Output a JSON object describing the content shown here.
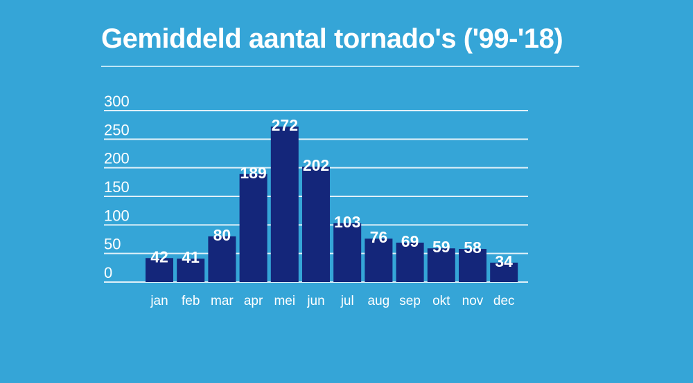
{
  "chart_data": {
    "type": "bar",
    "title": "Gemiddeld aantal tornado's ('99-'18)",
    "xlabel": "",
    "ylabel": "",
    "categories": [
      "jan",
      "feb",
      "mar",
      "apr",
      "mei",
      "jun",
      "jul",
      "aug",
      "sep",
      "okt",
      "nov",
      "dec"
    ],
    "values": [
      42,
      41,
      80,
      189,
      272,
      202,
      103,
      76,
      69,
      59,
      58,
      34
    ],
    "ylim": [
      0,
      300
    ],
    "yticks": [
      0,
      50,
      100,
      150,
      200,
      250,
      300
    ],
    "grid": true,
    "colors": {
      "bar": "#14267a",
      "background": "#35a5d7",
      "grid": "#ffffff",
      "text": "#ffffff"
    }
  }
}
